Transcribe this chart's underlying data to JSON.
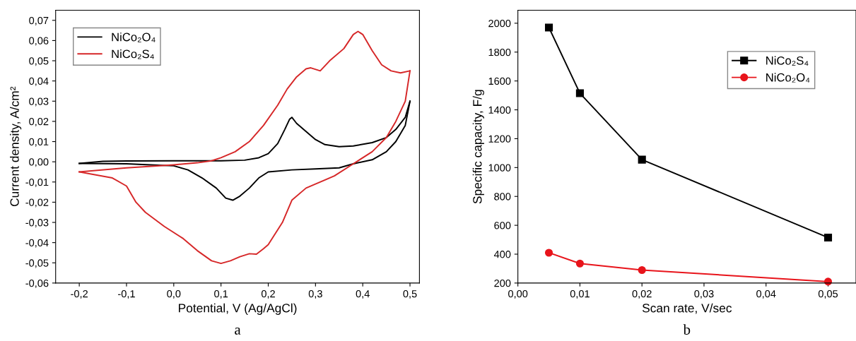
{
  "chart_data": [
    {
      "type": "line",
      "xlabel": "Potential, V (Ag/AgCl)",
      "ylabel": "Current density, A/cm²",
      "annotations": [
        "a"
      ],
      "legend": "top left",
      "grid": false,
      "marker": "none",
      "line_style": "solid",
      "xlim": [
        -0.25,
        0.52
      ],
      "ylim": [
        -0.06,
        0.075
      ],
      "xticks": [
        {
          "value": -0.2,
          "label": "-0,2"
        },
        {
          "value": -0.1,
          "label": "-0,1"
        },
        {
          "value": 0.0,
          "label": "0,0"
        },
        {
          "value": 0.1,
          "label": "0,1"
        },
        {
          "value": 0.2,
          "label": "0,2"
        },
        {
          "value": 0.3,
          "label": "0,3"
        },
        {
          "value": 0.4,
          "label": "0,4"
        },
        {
          "value": 0.5,
          "label": "0,5"
        }
      ],
      "yticks": [
        {
          "value": -0.06,
          "label": "-0,06"
        },
        {
          "value": -0.05,
          "label": "-0,05"
        },
        {
          "value": -0.04,
          "label": "-0,04"
        },
        {
          "value": -0.03,
          "label": "-0,03"
        },
        {
          "value": -0.02,
          "label": "-0,02"
        },
        {
          "value": -0.01,
          "label": "-0,01"
        },
        {
          "value": 0.0,
          "label": "0,00"
        },
        {
          "value": 0.01,
          "label": "0,01"
        },
        {
          "value": 0.02,
          "label": "0,02"
        },
        {
          "value": 0.03,
          "label": "0,03"
        },
        {
          "value": 0.04,
          "label": "0,04"
        },
        {
          "value": 0.05,
          "label": "0,05"
        },
        {
          "value": 0.06,
          "label": "0,06"
        },
        {
          "value": 0.07,
          "label": "0,07"
        }
      ],
      "series": [
        {
          "name": "NiCo₂O₄",
          "color": "#000000",
          "x": [
            -0.2,
            -0.15,
            -0.1,
            0.0,
            0.1,
            0.15,
            0.18,
            0.2,
            0.22,
            0.235,
            0.245,
            0.25,
            0.26,
            0.28,
            0.3,
            0.32,
            0.35,
            0.38,
            0.42,
            0.45,
            0.47,
            0.49,
            0.5
          ],
          "values": [
            -0.0008,
            0.0002,
            0.0004,
            0.0005,
            0.0005,
            0.0008,
            0.002,
            0.004,
            0.009,
            0.016,
            0.021,
            0.022,
            0.019,
            0.015,
            0.011,
            0.0085,
            0.0075,
            0.0078,
            0.0095,
            0.012,
            0.016,
            0.022,
            0.03
          ]
        },
        {
          "color": "#000000",
          "x": [
            -0.2,
            -0.1,
            -0.05,
            0.0,
            0.03,
            0.06,
            0.09,
            0.11,
            0.125,
            0.14,
            0.16,
            0.18,
            0.2,
            0.25,
            0.3,
            0.35,
            0.38,
            0.42,
            0.45,
            0.47,
            0.49,
            0.5
          ],
          "values": [
            -0.0008,
            -0.001,
            -0.0015,
            -0.002,
            -0.004,
            -0.008,
            -0.013,
            -0.018,
            -0.019,
            -0.017,
            -0.013,
            -0.008,
            -0.005,
            -0.004,
            -0.0035,
            -0.003,
            -0.001,
            0.001,
            0.005,
            0.01,
            0.018,
            0.03
          ]
        },
        {
          "name": "NiCo₂S₄",
          "color": "#d62728",
          "x": [
            -0.2,
            -0.1,
            0.0,
            0.05,
            0.08,
            0.1,
            0.13,
            0.16,
            0.19,
            0.22,
            0.24,
            0.26,
            0.28,
            0.29,
            0.31,
            0.33,
            0.36,
            0.38,
            0.39,
            0.4,
            0.42,
            0.44,
            0.46,
            0.48,
            0.5
          ],
          "values": [
            -0.005,
            -0.003,
            -0.0015,
            -0.0005,
            0.0005,
            0.002,
            0.005,
            0.01,
            0.018,
            0.028,
            0.036,
            0.042,
            0.046,
            0.0465,
            0.045,
            0.05,
            0.056,
            0.063,
            0.0645,
            0.063,
            0.055,
            0.048,
            0.045,
            0.044,
            0.045
          ]
        },
        {
          "color": "#d62728",
          "x": [
            -0.2,
            -0.13,
            -0.1,
            -0.08,
            -0.06,
            -0.02,
            0.02,
            0.05,
            0.08,
            0.1,
            0.12,
            0.14,
            0.16,
            0.175,
            0.19,
            0.2,
            0.23,
            0.25,
            0.28,
            0.3,
            0.34,
            0.38,
            0.42,
            0.45,
            0.47,
            0.49,
            0.5
          ],
          "values": [
            -0.005,
            -0.008,
            -0.012,
            -0.02,
            -0.025,
            -0.032,
            -0.038,
            -0.044,
            -0.049,
            -0.0503,
            -0.049,
            -0.047,
            -0.0455,
            -0.0457,
            -0.043,
            -0.041,
            -0.03,
            -0.019,
            -0.013,
            -0.011,
            -0.007,
            -0.001,
            0.005,
            0.012,
            0.02,
            0.03,
            0.045
          ]
        }
      ]
    },
    {
      "type": "line",
      "xlabel": "Scan rate, V/sec",
      "ylabel": "Specific capacity, F/g",
      "annotations": [
        "b"
      ],
      "legend": "top right",
      "grid": false,
      "line_style": "solid",
      "xlim": [
        0.0,
        0.0545
      ],
      "ylim": [
        200,
        2090
      ],
      "xticks": [
        {
          "value": 0.0,
          "label": "0,00"
        },
        {
          "value": 0.01,
          "label": "0,01"
        },
        {
          "value": 0.02,
          "label": "0,02"
        },
        {
          "value": 0.03,
          "label": "0,03"
        },
        {
          "value": 0.04,
          "label": "0,04"
        },
        {
          "value": 0.05,
          "label": "0,05"
        }
      ],
      "yticks": [
        200,
        400,
        600,
        800,
        1000,
        1200,
        1400,
        1600,
        1800,
        2000
      ],
      "x": [
        0.005,
        0.01,
        0.02,
        0.05
      ],
      "series": [
        {
          "name": "NiCo₂S₄",
          "color": "#000000",
          "marker": "square",
          "values": [
            1970,
            1515,
            1055,
            515
          ]
        },
        {
          "name": "NiCo₂O₄",
          "color": "#e8141b",
          "marker": "circle",
          "values": [
            410,
            335,
            290,
            210
          ]
        }
      ]
    }
  ]
}
